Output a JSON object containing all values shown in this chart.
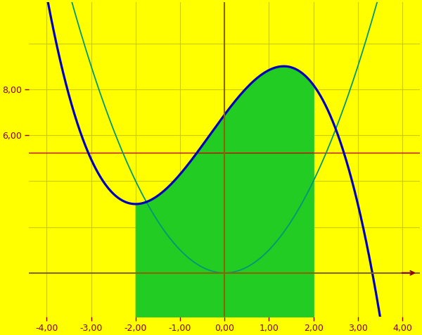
{
  "bg_color": "#FFFF00",
  "xlim": [
    -4.4,
    4.4
  ],
  "ylim": [
    -1.9,
    11.8
  ],
  "x_ticks": [
    -4,
    -3,
    -2,
    -1,
    0,
    1,
    2,
    3,
    4
  ],
  "y_tick_vals": [
    6,
    8
  ],
  "fill_xmin": -2.0,
  "fill_xmax": 2.0,
  "fill_color": "#22CC22",
  "curve_a": -0.324,
  "curve_b": -0.324,
  "curve_c": 2.592,
  "curve_d": 6.888,
  "curve_color": "#0000BB",
  "curve_lw": 2.3,
  "parabola_color": "#009977",
  "parabola_lw": 1.3,
  "hline_y": 5.25,
  "hline_color": "#CC0000",
  "hline_lw": 1.0,
  "axis_color": "#886600",
  "axis_lw": 1.5,
  "grid_color": "#CCCC00",
  "grid_lw": 0.8,
  "tick_color": "#880000",
  "tick_fontsize": 9,
  "arrow_color": "#880000"
}
